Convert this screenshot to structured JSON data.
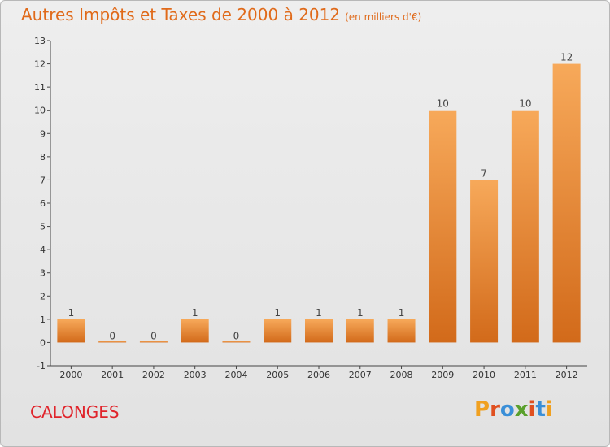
{
  "title": "Autres Impôts et Taxes de 2000 à 2012",
  "unit": "(en milliers d'€)",
  "commune": "CALONGES",
  "logo": {
    "text": "Proxiti",
    "letters": [
      "P",
      "r",
      "o",
      "x",
      "i",
      "t",
      "i"
    ],
    "colors": [
      "#f0a020",
      "#e05020",
      "#3a8fd8",
      "#5aa02c",
      "#e05020",
      "#3a8fd8",
      "#f0a020"
    ]
  },
  "colors": {
    "title": "#e06a1a",
    "bar_top": "#f7a95a",
    "bar_bottom": "#d26a1a",
    "commune": "#e0242b",
    "axis": "#444444"
  },
  "chart_data": {
    "type": "bar",
    "categories": [
      "2000",
      "2001",
      "2002",
      "2003",
      "2004",
      "2005",
      "2006",
      "2007",
      "2008",
      "2009",
      "2010",
      "2011",
      "2012"
    ],
    "values": [
      1,
      0,
      0,
      1,
      0,
      1,
      1,
      1,
      1,
      10,
      7,
      10,
      12
    ],
    "ylim": [
      -1,
      13
    ],
    "yticks": [
      -1,
      0,
      1,
      2,
      3,
      4,
      5,
      6,
      7,
      8,
      9,
      10,
      11,
      12,
      13
    ],
    "grid": false,
    "title": "Autres Impôts et Taxes de 2000 à 2012",
    "xlabel": "",
    "ylabel": ""
  }
}
